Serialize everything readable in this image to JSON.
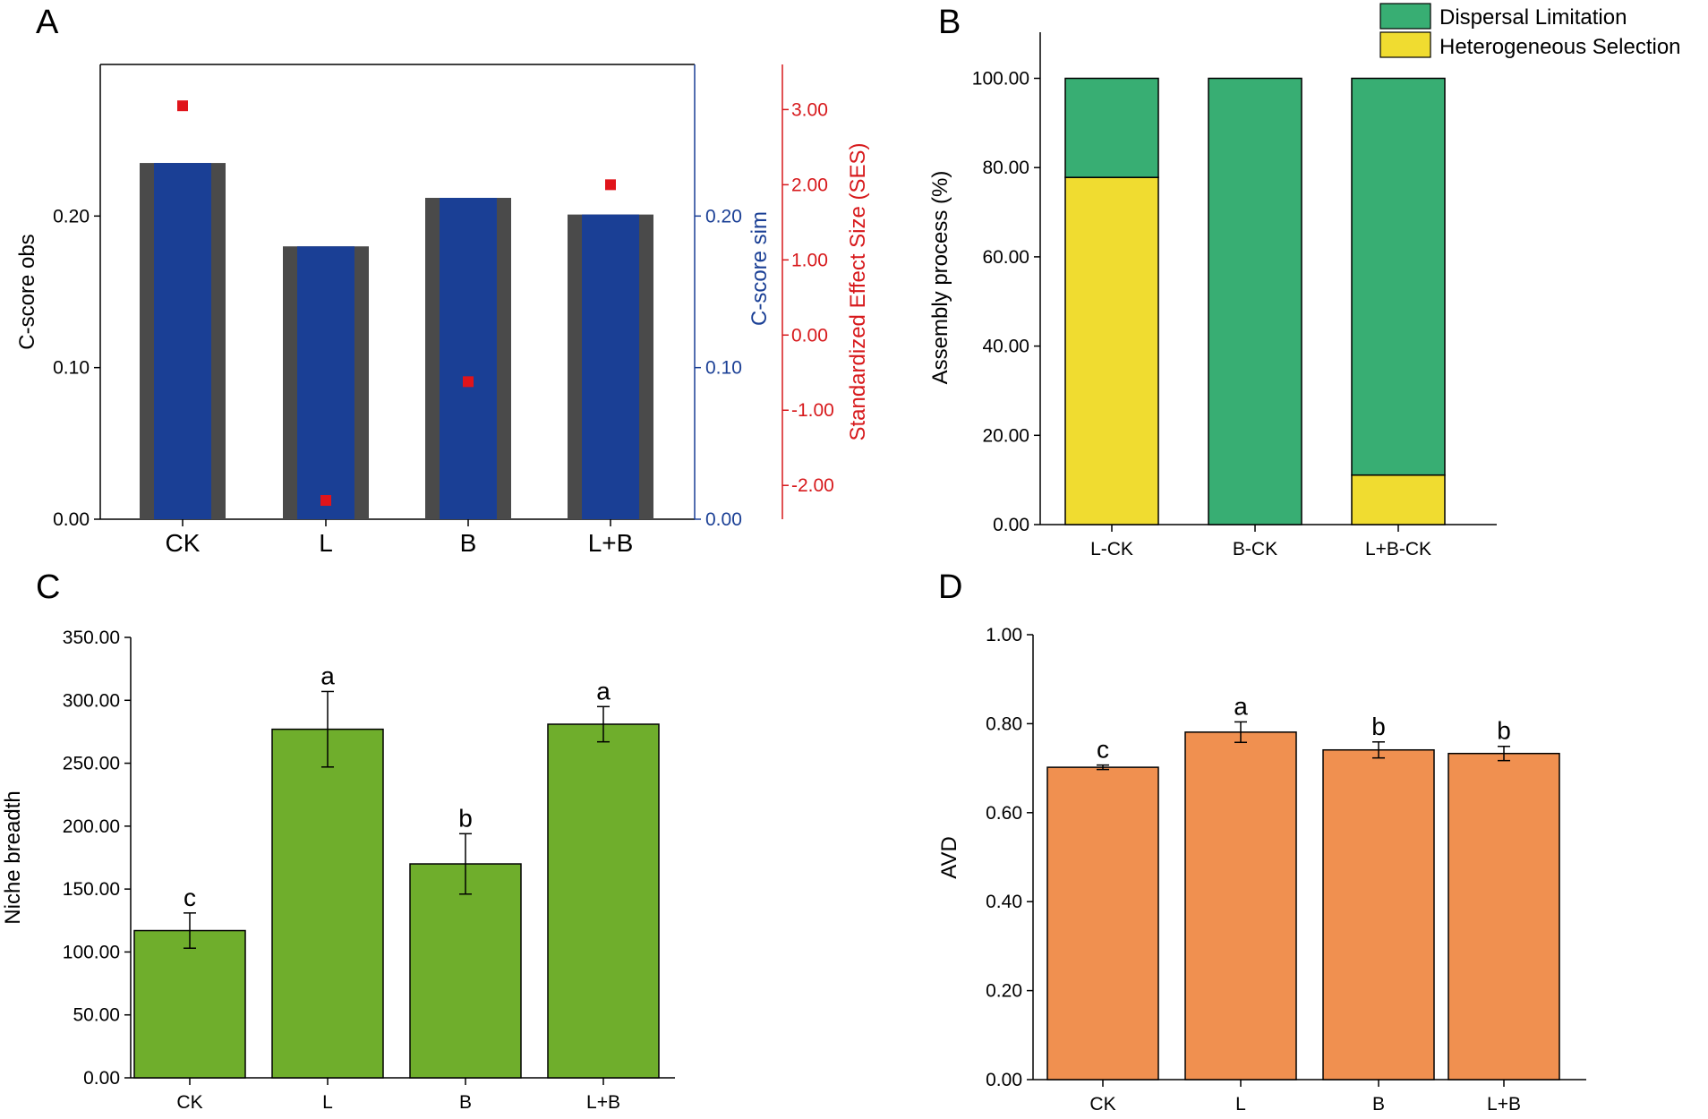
{
  "colors": {
    "obs_bar": "#4a4a4a",
    "sim_bar": "#1a3f95",
    "ses_point": "#e0141b",
    "ses_axis": "#d7191c",
    "sim_axis": "#1a3f95",
    "dispersal": "#38ae73",
    "heterogeneous": "#f0dc30",
    "niche_bar": "#6fae2c",
    "avd_bar": "#f09050"
  },
  "chart_data": [
    {
      "panel": "A",
      "type": "bar",
      "categories": [
        "CK",
        "L",
        "B",
        "L+B"
      ],
      "series": [
        {
          "name": "C-score obs",
          "axis": "left",
          "values": [
            0.235,
            0.18,
            0.212,
            0.201
          ]
        },
        {
          "name": "C-score sim",
          "axis": "right1",
          "values": [
            0.235,
            0.18,
            0.212,
            0.201
          ]
        },
        {
          "name": "Standardized Effect Size (SES)",
          "axis": "right2",
          "type": "scatter",
          "values": [
            3.05,
            -2.2,
            -0.62,
            2.0
          ]
        }
      ],
      "ylabel": "C-score obs",
      "ylabel_right": "C-score sim",
      "ylabel_right2": "Standardized Effect Size (SES)",
      "ylim": [
        0,
        0.3
      ],
      "yticks": [
        "0.00",
        "0.10",
        "0.20"
      ],
      "yticks_right": [
        "0.00",
        "0.10",
        "0.20"
      ],
      "ylim_right2": [
        -2.45,
        3.6
      ],
      "yticks_right2": [
        "-2.00",
        "-1.00",
        "0.00",
        "1.00",
        "2.00",
        "3.00"
      ]
    },
    {
      "panel": "B",
      "type": "bar",
      "stacked": true,
      "categories": [
        "L-CK",
        "B-CK",
        "L+B-CK"
      ],
      "series": [
        {
          "name": "Heterogeneous Selection",
          "values": [
            77.8,
            0,
            11.1
          ]
        },
        {
          "name": "Dispersal Limitation",
          "values": [
            22.2,
            100,
            88.9
          ]
        }
      ],
      "ylabel": "Assembly process (%)",
      "ylim": [
        0,
        110
      ],
      "yticks": [
        "0.00",
        "20.00",
        "40.00",
        "60.00",
        "80.00",
        "100.00"
      ],
      "legend": [
        "Dispersal Limitation",
        "Heterogeneous Selection"
      ],
      "legend_position": "top-right"
    },
    {
      "panel": "C",
      "type": "bar",
      "categories": [
        "CK",
        "L",
        "B",
        "L+B"
      ],
      "values": [
        117,
        277,
        170,
        281
      ],
      "errors": [
        14,
        30,
        24,
        14
      ],
      "letters": [
        "c",
        "a",
        "b",
        "a"
      ],
      "ylabel": "Niche breadth",
      "ylim": [
        0,
        350
      ],
      "yticks": [
        "0.00",
        "50.00",
        "100.00",
        "150.00",
        "200.00",
        "250.00",
        "300.00",
        "350.00"
      ]
    },
    {
      "panel": "D",
      "type": "bar",
      "categories": [
        "CK",
        "L",
        "B",
        "L+B"
      ],
      "values": [
        0.702,
        0.781,
        0.741,
        0.733
      ],
      "errors": [
        0.005,
        0.023,
        0.018,
        0.016
      ],
      "letters": [
        "c",
        "a",
        "b",
        "b"
      ],
      "ylabel": "AVD",
      "ylim": [
        0,
        1.0
      ],
      "yticks": [
        "0.00",
        "0.20",
        "0.40",
        "0.60",
        "0.80",
        "1.00"
      ]
    }
  ]
}
